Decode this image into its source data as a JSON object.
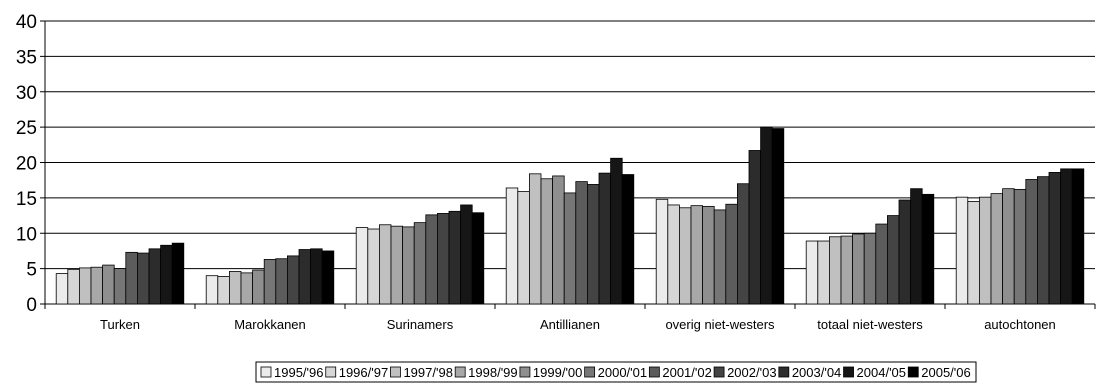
{
  "chart_data": {
    "type": "bar",
    "title": "",
    "xlabel": "",
    "ylabel": "",
    "ylim": [
      0,
      40
    ],
    "yticks": [
      0,
      5,
      10,
      15,
      20,
      25,
      30,
      35,
      40
    ],
    "grid": "horizontal",
    "legend_position": "bottom",
    "categories": [
      "Turken",
      "Marokkanen",
      "Surinamers",
      "Antillianen",
      "overig niet-westers",
      "totaal niet-westers",
      "autochtonen"
    ],
    "series": [
      {
        "name": "1995/'96",
        "color": "#ebebeb",
        "values": [
          4.3,
          4.0,
          10.8,
          16.4,
          14.8,
          8.9,
          15.1
        ]
      },
      {
        "name": "1996/'97",
        "color": "#d6d6d6",
        "values": [
          4.9,
          3.9,
          10.6,
          15.9,
          14.0,
          8.9,
          14.5
        ]
      },
      {
        "name": "1997/'98",
        "color": "#c0c0c0",
        "values": [
          5.1,
          4.6,
          11.2,
          18.4,
          13.6,
          9.5,
          15.1
        ]
      },
      {
        "name": "1998/'99",
        "color": "#a8a8a8",
        "values": [
          5.2,
          4.4,
          11.0,
          17.7,
          13.9,
          9.6,
          15.6
        ]
      },
      {
        "name": "1999/'00",
        "color": "#8f8f8f",
        "values": [
          5.5,
          4.8,
          10.9,
          18.1,
          13.8,
          9.9,
          16.3
        ]
      },
      {
        "name": "2000/'01",
        "color": "#767676",
        "values": [
          5.0,
          6.3,
          11.5,
          15.7,
          13.3,
          10.0,
          16.2
        ]
      },
      {
        "name": "2001/'02",
        "color": "#5c5c5c",
        "values": [
          7.3,
          6.4,
          12.6,
          17.3,
          14.1,
          11.3,
          17.6
        ]
      },
      {
        "name": "2002/'03",
        "color": "#444444",
        "values": [
          7.2,
          6.8,
          12.8,
          16.9,
          17.0,
          12.5,
          18.0
        ]
      },
      {
        "name": "2003/'04",
        "color": "#2c2c2c",
        "values": [
          7.8,
          7.7,
          13.1,
          18.5,
          21.7,
          14.7,
          18.6
        ]
      },
      {
        "name": "2004/'05",
        "color": "#161616",
        "values": [
          8.3,
          7.8,
          14.0,
          20.6,
          25.0,
          16.3,
          19.1
        ]
      },
      {
        "name": "2005/'06",
        "color": "#000000",
        "values": [
          8.6,
          7.5,
          12.9,
          18.3,
          24.8,
          15.5,
          19.1
        ]
      }
    ]
  }
}
